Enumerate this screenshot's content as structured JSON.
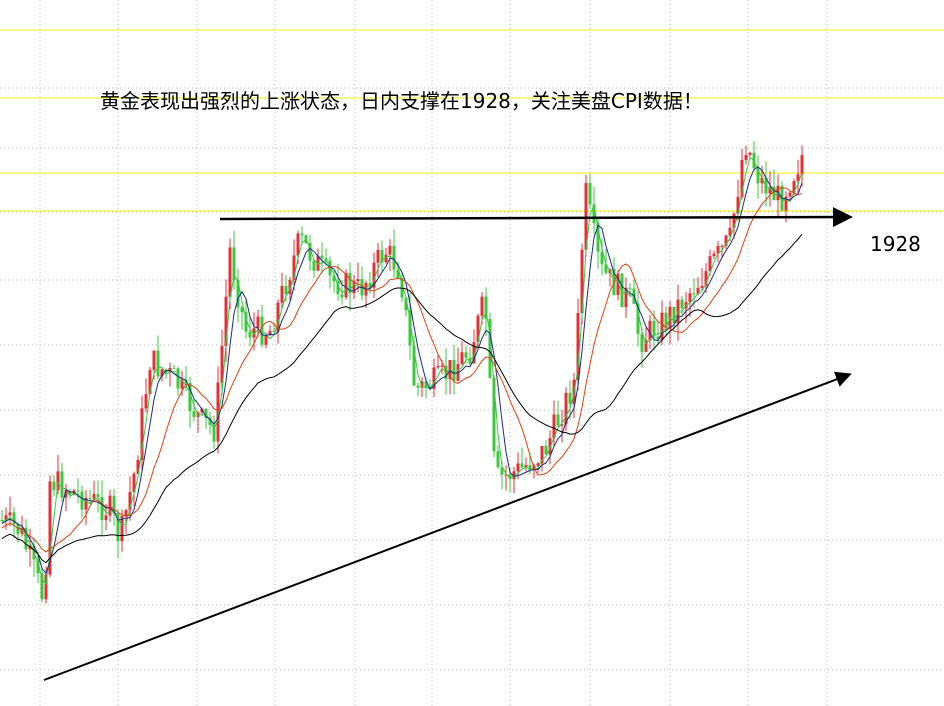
{
  "header": {
    "title": "黄金表现出强烈的上涨状态，日内支撑在1928，关注美盘CPI数据！"
  },
  "annotations": [
    {
      "label": "1928"
    }
  ]
}
